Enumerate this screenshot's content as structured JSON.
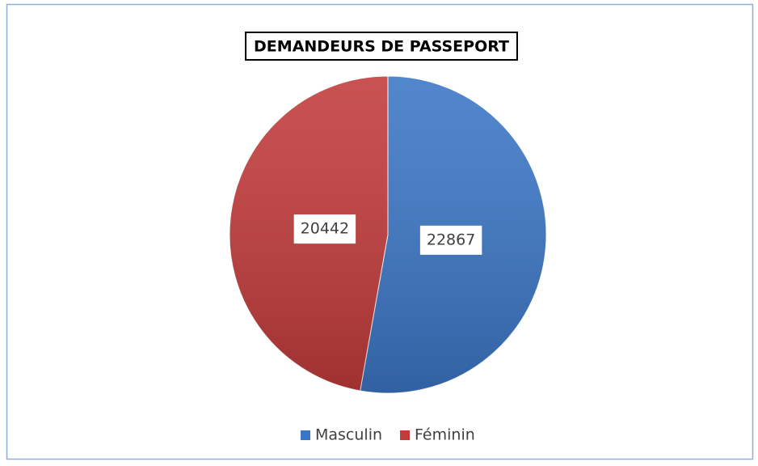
{
  "chart_data": {
    "type": "pie",
    "title": "DEMANDEURS DE PASSEPORT",
    "categories": [
      "Masculin",
      "Féminin"
    ],
    "values": [
      22867,
      20442
    ],
    "colors": [
      "#3b76c6",
      "#c23b3a"
    ],
    "legend": "bottom"
  }
}
